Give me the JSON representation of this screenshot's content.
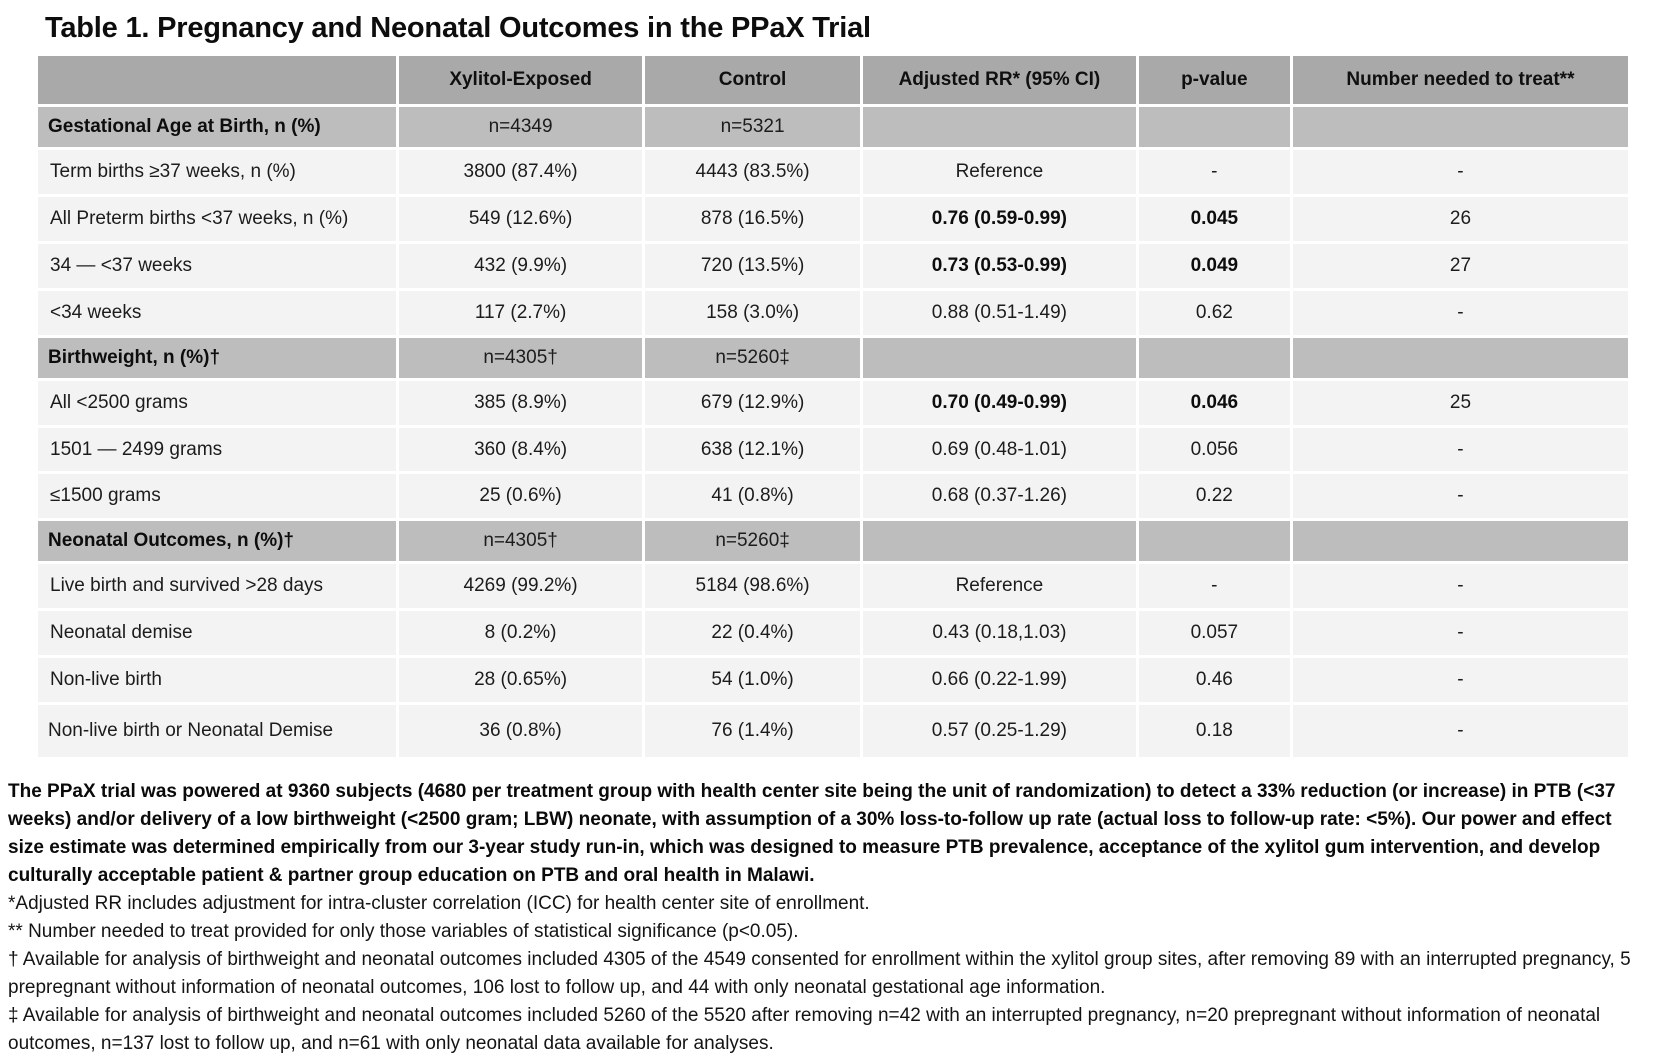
{
  "title": "Table 1. Pregnancy and Neonatal Outcomes in the PPaX Trial",
  "table": {
    "columns": [
      "",
      "Xylitol-Exposed",
      "Control",
      "Adjusted RR* (95% CI)",
      "p-value",
      "Number needed to treat**"
    ],
    "rows": [
      {
        "type": "section",
        "strong": false,
        "cells": [
          "Gestational Age at Birth, n (%)",
          "n=4349",
          "n=5321",
          "",
          "",
          ""
        ]
      },
      {
        "type": "data",
        "strong": false,
        "cells": [
          "Term births ≥37 weeks, n (%)",
          "3800 (87.4%)",
          "4443 (83.5%)",
          "Reference",
          "-",
          "-"
        ]
      },
      {
        "type": "data",
        "strong": true,
        "cells": [
          "All Preterm births <37 weeks, n (%)",
          "549 (12.6%)",
          "878 (16.5%)",
          "0.76 (0.59-0.99)",
          "0.045",
          "26"
        ]
      },
      {
        "type": "data",
        "strong": true,
        "cells": [
          "34 — <37 weeks",
          "432 (9.9%)",
          "720 (13.5%)",
          "0.73 (0.53-0.99)",
          "0.049",
          "27"
        ]
      },
      {
        "type": "data",
        "strong": false,
        "cells": [
          "<34 weeks",
          "117 (2.7%)",
          "158 (3.0%)",
          "0.88 (0.51-1.49)",
          "0.62",
          "-"
        ]
      },
      {
        "type": "section",
        "strong": false,
        "cells": [
          "Birthweight, n (%)†",
          "n=4305†",
          "n=5260‡",
          "",
          "",
          ""
        ]
      },
      {
        "type": "data",
        "strong": true,
        "cells": [
          "All <2500 grams",
          "385 (8.9%)",
          "679 (12.9%)",
          "0.70 (0.49-0.99)",
          "0.046",
          "25"
        ]
      },
      {
        "type": "data",
        "strong": false,
        "cells": [
          "1501 — 2499 grams",
          "360 (8.4%)",
          "638 (12.1%)",
          "0.69 (0.48-1.01)",
          "0.056",
          "-"
        ]
      },
      {
        "type": "data",
        "strong": false,
        "cells": [
          "≤1500 grams",
          "25 (0.6%)",
          "41 (0.8%)",
          "0.68 (0.37-1.26)",
          "0.22",
          "-"
        ]
      },
      {
        "type": "section",
        "strong": false,
        "cells": [
          "Neonatal Outcomes, n (%)†",
          "n=4305†",
          "n=5260‡",
          "",
          "",
          ""
        ]
      },
      {
        "type": "data",
        "strong": false,
        "cells": [
          "Live birth and survived >28 days",
          "4269 (99.2%)",
          "5184 (98.6%)",
          "Reference",
          "-",
          "-"
        ]
      },
      {
        "type": "data",
        "strong": false,
        "cells": [
          "Neonatal demise",
          "8 (0.2%)",
          "22 (0.4%)",
          "0.43 (0.18,1.03)",
          "0.057",
          "-"
        ]
      },
      {
        "type": "data",
        "strong": false,
        "cells": [
          "Non-live birth",
          "28 (0.65%)",
          "54 (1.0%)",
          "0.66 (0.22-1.99)",
          "0.46",
          "-"
        ]
      },
      {
        "type": "data",
        "strong": false,
        "tall": true,
        "cells": [
          "Non-live birth or Neonatal Demise",
          "36 (0.8%)",
          "76 (1.4%)",
          "0.57 (0.25-1.29)",
          "0.18",
          "-"
        ]
      }
    ]
  },
  "footnotes": [
    {
      "bold": true,
      "text": "The PPaX trial was powered at 9360 subjects (4680 per treatment group with health center site being the unit of randomization) to detect a 33% reduction (or increase) in PTB (<37 weeks) and/or delivery of a low birthweight (<2500 gram; LBW) neonate, with assumption of a 30% loss-to-follow up rate (actual loss to follow-up rate: <5%). Our power and effect size estimate was determined empirically from our 3-year study run-in, which was designed to measure PTB prevalence, acceptance of the xylitol gum intervention, and develop culturally acceptable patient & partner group education on PTB and oral health in Malawi."
    },
    {
      "bold": false,
      "text": "*Adjusted RR includes adjustment for intra-cluster correlation (ICC) for health center site of enrollment."
    },
    {
      "bold": false,
      "text": "** Number needed to treat provided for only those variables of statistical significance (p<0.05)."
    },
    {
      "bold": false,
      "text": "† Available for analysis of birthweight and neonatal outcomes included 4305 of the 4549 consented for enrollment within the xylitol group sites, after removing 89 with an interrupted pregnancy, 5 prepregnant without information of neonatal outcomes, 106 lost to follow up, and 44 with only neonatal gestational age information."
    },
    {
      "bold": false,
      "text": "‡ Available for analysis of birthweight and neonatal outcomes included 5260 of the 5520 after removing n=42 with an interrupted pregnancy, n=20 prepregnant without information of neonatal outcomes, n=137 lost to follow up, and n=61 with only neonatal data available for analyses."
    }
  ],
  "colors": {
    "header_bg": "#a9a9a9",
    "section_bg": "#bdbdbd",
    "data_row_bg": "#f3f3f3",
    "grid": "#ffffff",
    "text": "#1c1c1c"
  }
}
